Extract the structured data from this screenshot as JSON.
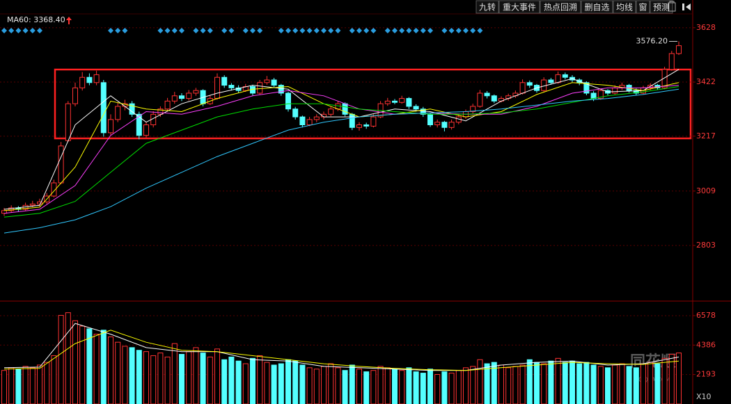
{
  "toolbar": {
    "buttons": [
      "九转",
      "重大事件",
      "热点回溯",
      "删自选",
      "均线",
      "窗",
      "预测"
    ]
  },
  "chart_data": {
    "type": "candlestick",
    "legend_text": "MA60: 3368.40",
    "annotations": [
      "3576.20"
    ],
    "ylim": [
      2600,
      3733
    ],
    "yticks": [
      3628,
      3422,
      3217,
      3009,
      2803
    ],
    "grid": true,
    "up_color": "#ff3232",
    "down_color": "#54ffff",
    "candles": [
      [
        2925,
        2945,
        2915,
        2935
      ],
      [
        2935,
        2955,
        2928,
        2945
      ],
      [
        2945,
        2952,
        2930,
        2940
      ],
      [
        2940,
        2965,
        2935,
        2955
      ],
      [
        2955,
        2972,
        2948,
        2960
      ],
      [
        2960,
        2980,
        2950,
        2968
      ],
      [
        2968,
        3002,
        2960,
        2990
      ],
      [
        2990,
        3052,
        2985,
        3040
      ],
      [
        3040,
        3195,
        3035,
        3180
      ],
      [
        3200,
        3350,
        3195,
        3340
      ],
      [
        3340,
        3420,
        3330,
        3400
      ],
      [
        3400,
        3460,
        3390,
        3440
      ],
      [
        3440,
        3455,
        3410,
        3420
      ],
      [
        3420,
        3465,
        3410,
        3450
      ],
      [
        3420,
        3430,
        3215,
        3230
      ],
      [
        3230,
        3300,
        3220,
        3280
      ],
      [
        3280,
        3345,
        3270,
        3330
      ],
      [
        3330,
        3355,
        3315,
        3340
      ],
      [
        3340,
        3350,
        3290,
        3300
      ],
      [
        3300,
        3310,
        3205,
        3220
      ],
      [
        3220,
        3270,
        3212,
        3260
      ],
      [
        3260,
        3312,
        3250,
        3300
      ],
      [
        3300,
        3330,
        3290,
        3320
      ],
      [
        3320,
        3362,
        3310,
        3350
      ],
      [
        3350,
        3385,
        3340,
        3370
      ],
      [
        3370,
        3380,
        3350,
        3360
      ],
      [
        3360,
        3392,
        3352,
        3380
      ],
      [
        3380,
        3400,
        3370,
        3390
      ],
      [
        3390,
        3395,
        3330,
        3340
      ],
      [
        3340,
        3372,
        3335,
        3360
      ],
      [
        3360,
        3455,
        3355,
        3440
      ],
      [
        3440,
        3448,
        3400,
        3410
      ],
      [
        3410,
        3418,
        3390,
        3400
      ],
      [
        3400,
        3410,
        3380,
        3390
      ],
      [
        3390,
        3415,
        3385,
        3405
      ],
      [
        3405,
        3412,
        3370,
        3380
      ],
      [
        3380,
        3430,
        3375,
        3420
      ],
      [
        3420,
        3445,
        3412,
        3430
      ],
      [
        3430,
        3438,
        3400,
        3410
      ],
      [
        3410,
        3415,
        3370,
        3380
      ],
      [
        3380,
        3385,
        3310,
        3320
      ],
      [
        3320,
        3328,
        3280,
        3290
      ],
      [
        3290,
        3295,
        3250,
        3260
      ],
      [
        3260,
        3290,
        3255,
        3280
      ],
      [
        3280,
        3300,
        3270,
        3290
      ],
      [
        3290,
        3310,
        3280,
        3300
      ],
      [
        3300,
        3330,
        3292,
        3320
      ],
      [
        3320,
        3350,
        3312,
        3340
      ],
      [
        3340,
        3345,
        3292,
        3300
      ],
      [
        3300,
        3305,
        3240,
        3250
      ],
      [
        3250,
        3270,
        3238,
        3260
      ],
      [
        3260,
        3268,
        3245,
        3255
      ],
      [
        3255,
        3300,
        3250,
        3290
      ],
      [
        3290,
        3350,
        3285,
        3340
      ],
      [
        3340,
        3362,
        3332,
        3350
      ],
      [
        3350,
        3358,
        3338,
        3345
      ],
      [
        3345,
        3370,
        3340,
        3360
      ],
      [
        3360,
        3365,
        3320,
        3330
      ],
      [
        3330,
        3338,
        3310,
        3320
      ],
      [
        3320,
        3328,
        3290,
        3300
      ],
      [
        3300,
        3305,
        3252,
        3260
      ],
      [
        3260,
        3280,
        3250,
        3270
      ],
      [
        3270,
        3275,
        3235,
        3250
      ],
      [
        3250,
        3280,
        3242,
        3270
      ],
      [
        3270,
        3300,
        3262,
        3290
      ],
      [
        3290,
        3318,
        3282,
        3310
      ],
      [
        3310,
        3340,
        3302,
        3330
      ],
      [
        3330,
        3392,
        3325,
        3380
      ],
      [
        3380,
        3388,
        3360,
        3370
      ],
      [
        3370,
        3375,
        3342,
        3350
      ],
      [
        3350,
        3368,
        3345,
        3360
      ],
      [
        3360,
        3378,
        3352,
        3370
      ],
      [
        3370,
        3390,
        3362,
        3380
      ],
      [
        3380,
        3432,
        3375,
        3420
      ],
      [
        3420,
        3428,
        3400,
        3410
      ],
      [
        3410,
        3415,
        3382,
        3390
      ],
      [
        3390,
        3440,
        3385,
        3430
      ],
      [
        3430,
        3438,
        3412,
        3420
      ],
      [
        3420,
        3462,
        3415,
        3450
      ],
      [
        3450,
        3458,
        3432,
        3440
      ],
      [
        3440,
        3448,
        3422,
        3430
      ],
      [
        3430,
        3436,
        3410,
        3420
      ],
      [
        3420,
        3425,
        3372,
        3380
      ],
      [
        3380,
        3388,
        3350,
        3360
      ],
      [
        3360,
        3398,
        3355,
        3390
      ],
      [
        3390,
        3395,
        3372,
        3380
      ],
      [
        3380,
        3410,
        3375,
        3400
      ],
      [
        3400,
        3420,
        3392,
        3410
      ],
      [
        3410,
        3415,
        3382,
        3390
      ],
      [
        3390,
        3398,
        3372,
        3380
      ],
      [
        3380,
        3408,
        3375,
        3400
      ],
      [
        3400,
        3418,
        3392,
        3410
      ],
      [
        3410,
        3415,
        3392,
        3400
      ],
      [
        3400,
        3480,
        3395,
        3470
      ],
      [
        3470,
        3540,
        3465,
        3530
      ],
      [
        3530,
        3576.2,
        3525,
        3560
      ]
    ],
    "ma_x": [
      0,
      5,
      10,
      15,
      20,
      25,
      30,
      35,
      40,
      45,
      50,
      55,
      60,
      65,
      70,
      75,
      80,
      85,
      90,
      95
    ],
    "ma_lines": [
      {
        "color": "#ffffff",
        "values": [
          2940,
          2955,
          3260,
          3370,
          3270,
          3340,
          3380,
          3410,
          3395,
          3290,
          3290,
          3320,
          3310,
          3275,
          3350,
          3400,
          3435,
          3385,
          3390,
          3470
        ]
      },
      {
        "color": "#ffff00",
        "values": [
          2935,
          2948,
          3100,
          3350,
          3320,
          3310,
          3360,
          3395,
          3405,
          3340,
          3290,
          3300,
          3320,
          3290,
          3310,
          3375,
          3420,
          3410,
          3390,
          3420
        ]
      },
      {
        "color": "#ff40ff",
        "values": [
          2925,
          2940,
          3030,
          3220,
          3310,
          3300,
          3330,
          3370,
          3390,
          3370,
          3320,
          3300,
          3305,
          3300,
          3300,
          3330,
          3380,
          3400,
          3400,
          3410
        ]
      },
      {
        "color": "#00e000",
        "values": [
          2910,
          2925,
          2970,
          3080,
          3190,
          3240,
          3290,
          3320,
          3340,
          3340,
          3320,
          3310,
          3300,
          3300,
          3305,
          3320,
          3345,
          3370,
          3385,
          3405
        ]
      },
      {
        "color": "#30c8ff",
        "values": [
          2850,
          2870,
          2900,
          2950,
          3020,
          3080,
          3140,
          3190,
          3240,
          3270,
          3290,
          3300,
          3305,
          3310,
          3320,
          3335,
          3350,
          3360,
          3375,
          3395
        ]
      }
    ],
    "signals": [
      0,
      1,
      2,
      3,
      4,
      5,
      15,
      16,
      17,
      22,
      23,
      24,
      25,
      27,
      28,
      29,
      31,
      32,
      34,
      35,
      36,
      39,
      40,
      41,
      42,
      43,
      44,
      45,
      46,
      47,
      49,
      50,
      51,
      52,
      54,
      55,
      56,
      57,
      58,
      59,
      60,
      62,
      63,
      64,
      65,
      66,
      67
    ],
    "signal_color": "#2a9ee0",
    "volume": {
      "ylim": [
        0,
        7300
      ],
      "yticks": [
        6578,
        4386,
        2193
      ],
      "unit_label": "X10",
      "values": [
        2500,
        2700,
        2600,
        2800,
        2700,
        2900,
        3100,
        3600,
        6600,
        6800,
        6200,
        5800,
        5600,
        5200,
        5500,
        5000,
        4600,
        4300,
        4200,
        4000,
        3900,
        3600,
        3800,
        3500,
        4500,
        3700,
        3900,
        4200,
        3800,
        3500,
        4100,
        3300,
        3500,
        3200,
        3000,
        3400,
        3600,
        3100,
        2900,
        3000,
        3300,
        3200,
        2900,
        2700,
        2600,
        2800,
        3000,
        2700,
        2500,
        2900,
        2600,
        2400,
        2500,
        2800,
        2700,
        2600,
        2500,
        2700,
        2400,
        2300,
        2600,
        2200,
        2400,
        2300,
        2500,
        2700,
        2800,
        3300,
        3000,
        3100,
        2900,
        2700,
        2800,
        2900,
        3300,
        3100,
        3000,
        3200,
        3400,
        3100,
        3200,
        3000,
        3100,
        2900,
        2800,
        2700,
        2900,
        3000,
        2800,
        2700,
        3000,
        3100,
        3000,
        3400,
        3700,
        3800
      ],
      "ma_lines": [
        {
          "color": "#ffffff",
          "values": [
            2700,
            2750,
            6000,
            5200,
            4200,
            3900,
            3900,
            3300,
            3200,
            2800,
            2700,
            2600,
            2500,
            2500,
            2900,
            3100,
            3200,
            2900,
            3000,
            3500
          ]
        },
        {
          "color": "#ffff00",
          "values": [
            2600,
            2650,
            4500,
            5500,
            4600,
            4000,
            3900,
            3600,
            3300,
            3000,
            2800,
            2650,
            2550,
            2500,
            2700,
            2900,
            3100,
            3000,
            2950,
            3200
          ]
        }
      ]
    }
  },
  "watermark": {
    "brand": "同花顺",
    "site": "10JQKA.COM"
  }
}
